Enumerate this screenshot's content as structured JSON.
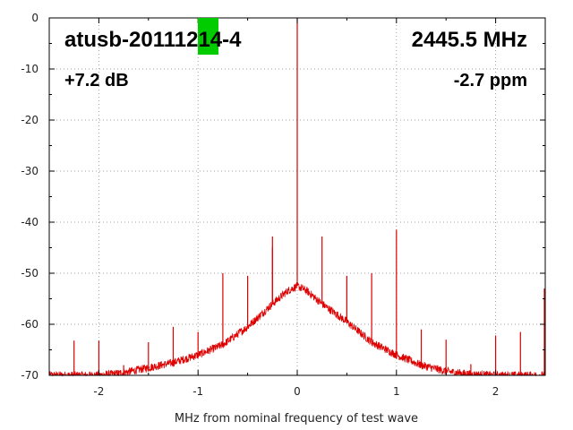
{
  "chart_data": {
    "type": "line",
    "title_left": "atusb-20111214-4",
    "title_right": "2445.5 MHz",
    "annotation_left": "+7.2 dB",
    "annotation_right": "-2.7 ppm",
    "xlabel": "MHz from nominal frequency of test wave",
    "ylabel": "",
    "xlim": [
      -2.5,
      2.5
    ],
    "ylim": [
      -70,
      0
    ],
    "xticks": [
      -2,
      -1,
      0,
      1,
      2
    ],
    "yticks": [
      0,
      -10,
      -20,
      -30,
      -40,
      -50,
      -60,
      -70
    ],
    "grid": true,
    "series_color": "#dd0000",
    "redaction_color": "#00cc00",
    "noise_envelope": {
      "x": [
        -2.5,
        -2.0,
        -1.75,
        -1.5,
        -1.25,
        -1.0,
        -0.75,
        -0.5,
        -0.25,
        -0.1,
        0.0,
        0.1,
        0.25,
        0.5,
        0.75,
        1.0,
        1.25,
        1.5,
        1.75,
        2.0,
        2.5
      ],
      "y": [
        -70,
        -70,
        -69.5,
        -68.5,
        -67.5,
        -66,
        -64,
        -60.5,
        -56,
        -53.5,
        -52.5,
        -53.5,
        -56,
        -59.5,
        -63.5,
        -66,
        -68,
        -69.2,
        -69.8,
        -70,
        -70
      ]
    },
    "spikes": [
      {
        "x": 0.0,
        "y": 0
      },
      {
        "x": -2.25,
        "y": -63.2
      },
      {
        "x": -2.0,
        "y": -63.2
      },
      {
        "x": -1.75,
        "y": -68
      },
      {
        "x": -1.5,
        "y": -63.5
      },
      {
        "x": -1.25,
        "y": -60.5
      },
      {
        "x": -1.0,
        "y": -61.5
      },
      {
        "x": -0.75,
        "y": -50
      },
      {
        "x": -0.5,
        "y": -50.5
      },
      {
        "x": -0.25,
        "y": -45
      },
      {
        "x": -0.25,
        "y": -42.8
      },
      {
        "x": 0.25,
        "y": -42.8
      },
      {
        "x": 0.5,
        "y": -50.5
      },
      {
        "x": 0.75,
        "y": -50
      },
      {
        "x": 1.0,
        "y": -41.5
      },
      {
        "x": 1.25,
        "y": -61
      },
      {
        "x": 1.5,
        "y": -63
      },
      {
        "x": 1.75,
        "y": -67.8
      },
      {
        "x": 2.0,
        "y": -62.2
      },
      {
        "x": 2.25,
        "y": -61.5
      },
      {
        "x": 2.5,
        "y": -53
      }
    ]
  }
}
